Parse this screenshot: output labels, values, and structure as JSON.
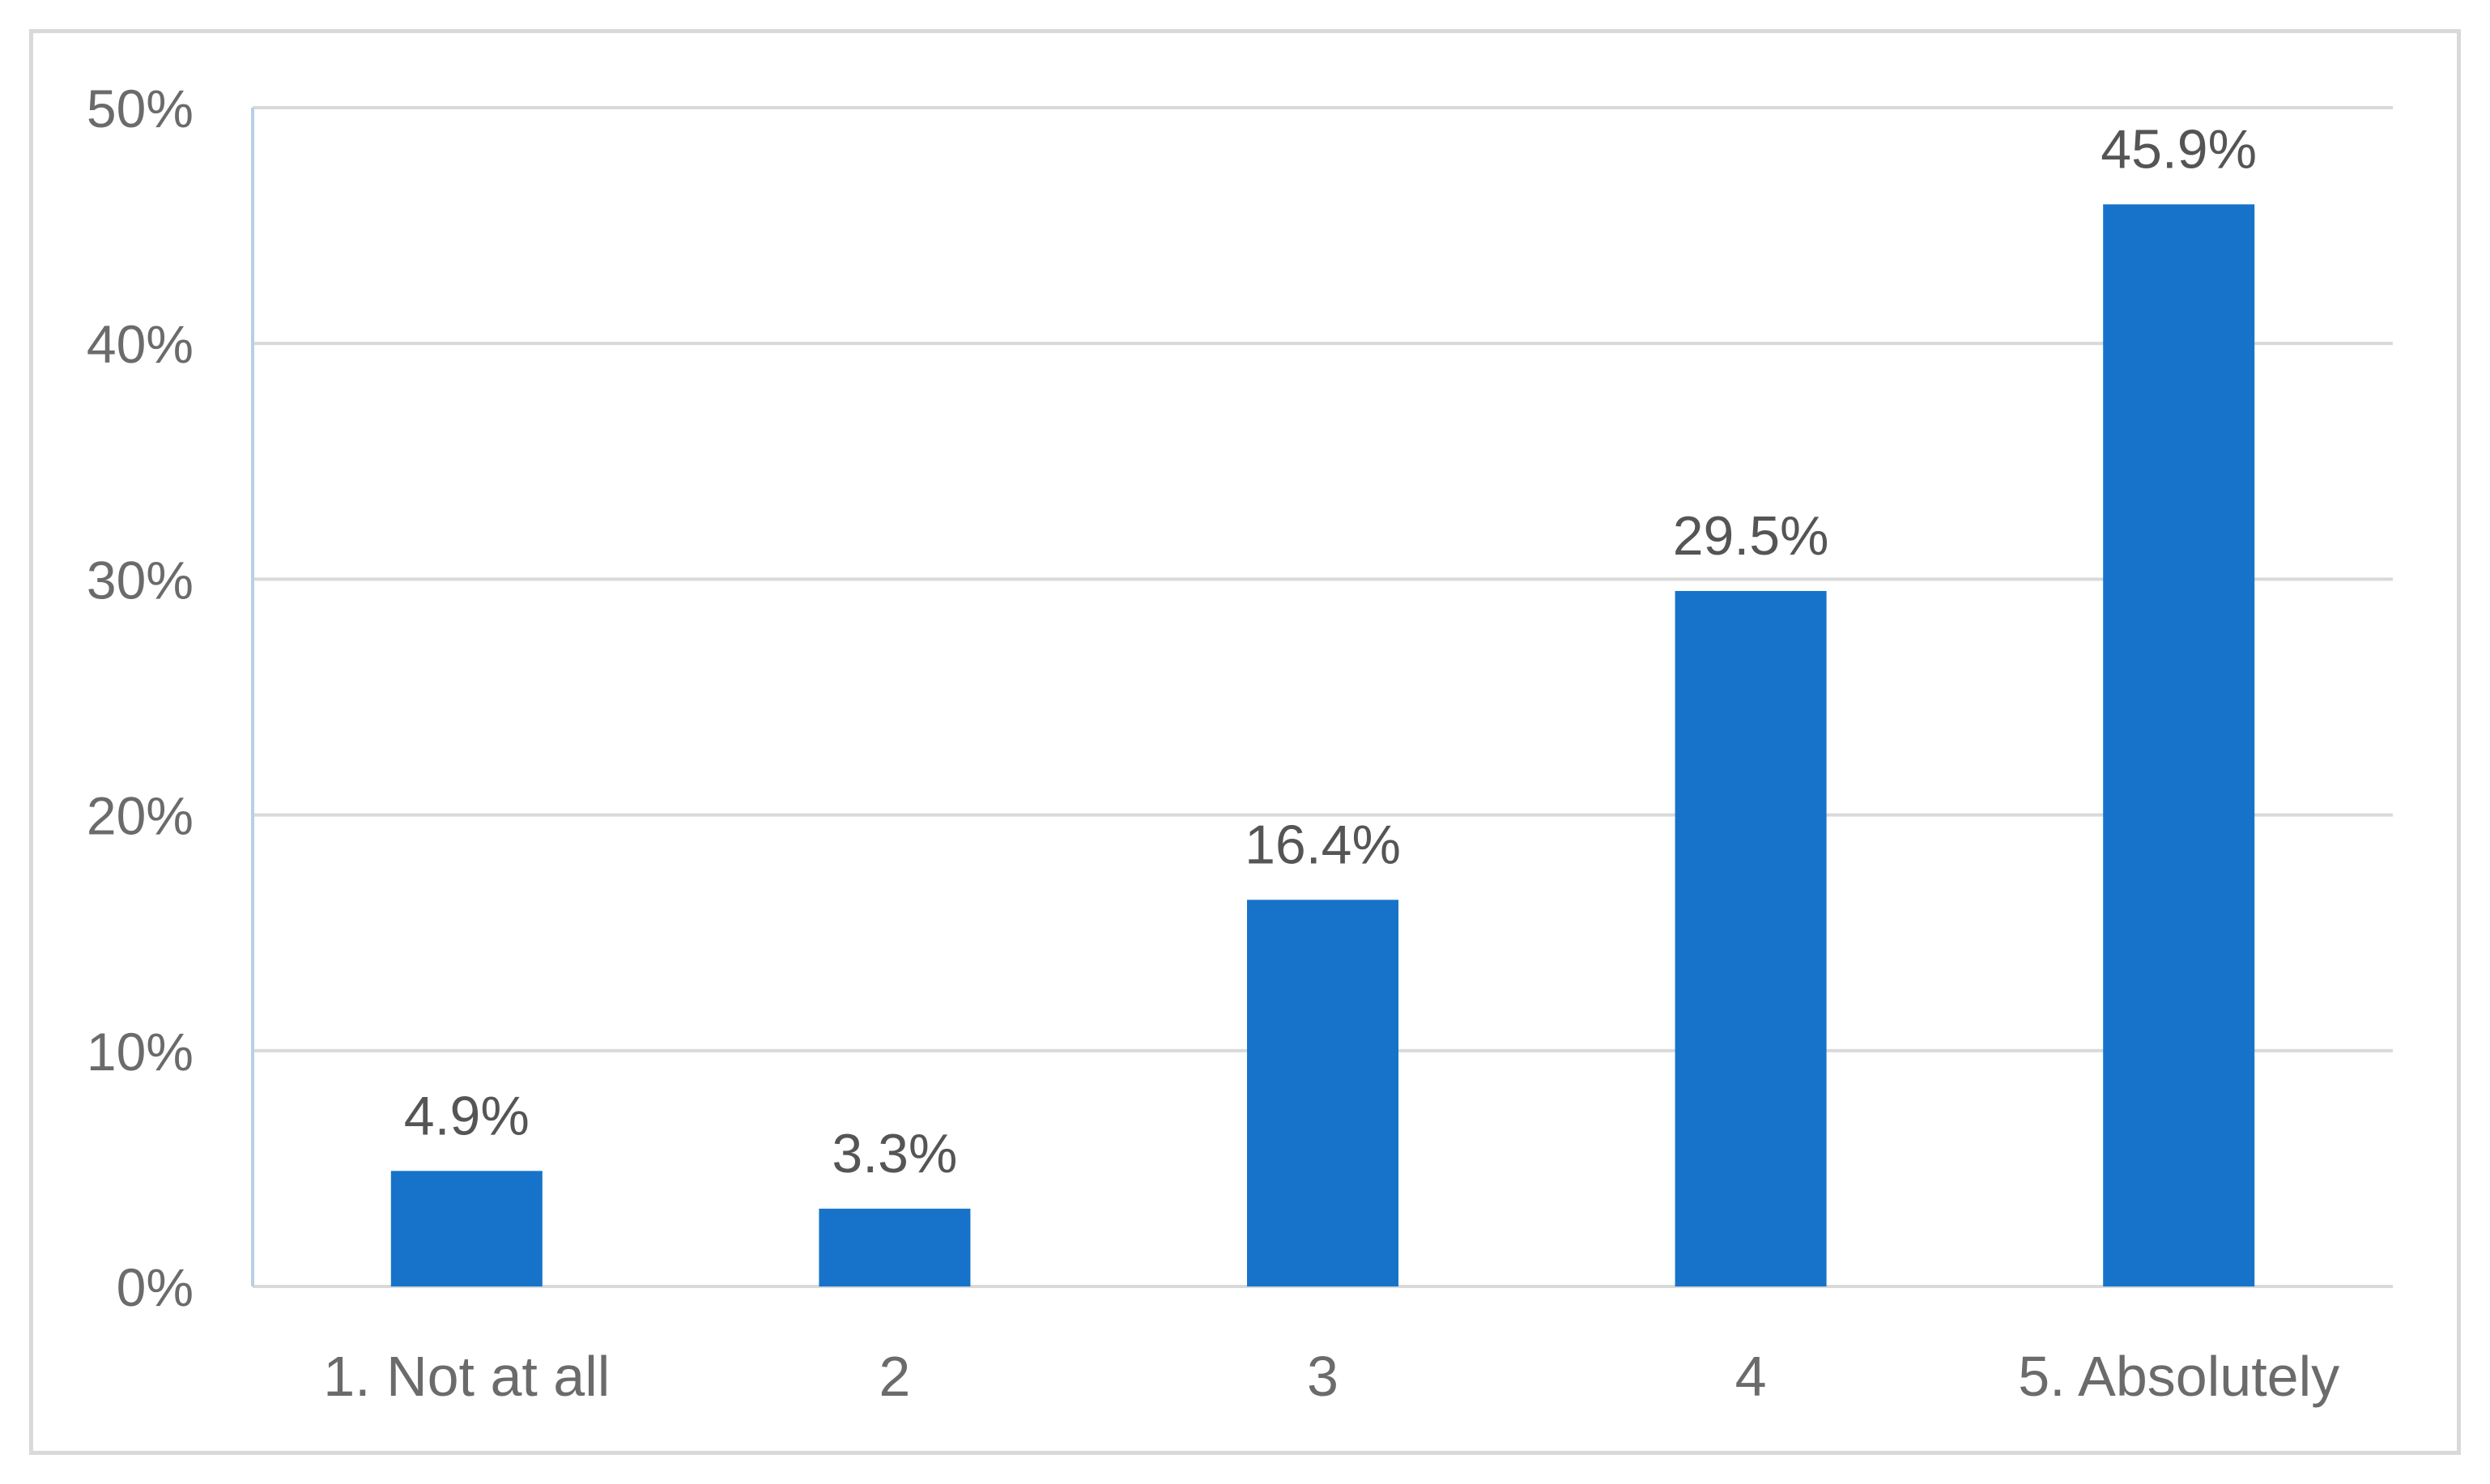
{
  "chart_data": {
    "type": "bar",
    "title": "",
    "xlabel": "",
    "ylabel": "",
    "categories": [
      "1. Not at all",
      "2",
      "3",
      "4",
      "5. Absolutely"
    ],
    "values": [
      4.9,
      3.3,
      16.4,
      29.5,
      45.9
    ],
    "data_labels": [
      "4.9%",
      "3.3%",
      "16.4%",
      "29.5%",
      "45.9%"
    ],
    "ylim": [
      0,
      50
    ],
    "yticks": [
      0,
      10,
      20,
      30,
      40,
      50
    ],
    "ytick_labels": [
      "0%",
      "10%",
      "20%",
      "30%",
      "40%",
      "50%"
    ],
    "grid": true,
    "legend": "none",
    "bar_color": "#1773c9",
    "grid_color": "#d9d9d9"
  }
}
